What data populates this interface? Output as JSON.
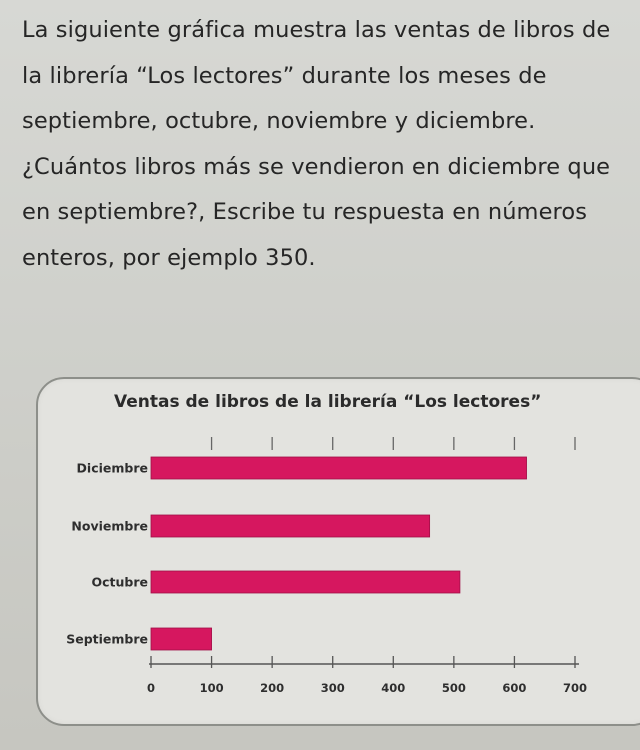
{
  "question": {
    "text": "La siguiente gráfica muestra las ventas de libros de la librería “Los lectores” durante los meses de septiembre, octubre, noviembre y diciembre. ¿Cuántos libros más se vendieron en diciembre que en septiembre?, Escribe tu respuesta en números enteros, por ejemplo 350."
  },
  "chart_data": {
    "type": "bar",
    "orientation": "horizontal",
    "title": "Ventas de libros de la librería “Los lectores”",
    "categories": [
      "Diciembre",
      "Noviembre",
      "Octubre",
      "Septiembre"
    ],
    "values": [
      620,
      460,
      510,
      100
    ],
    "xlabel": "",
    "ylabel": "",
    "xlim": [
      0,
      700
    ],
    "xticks": [
      0,
      100,
      200,
      300,
      400,
      500,
      600,
      700
    ],
    "grid": false,
    "bar_color": "#d6175f"
  }
}
